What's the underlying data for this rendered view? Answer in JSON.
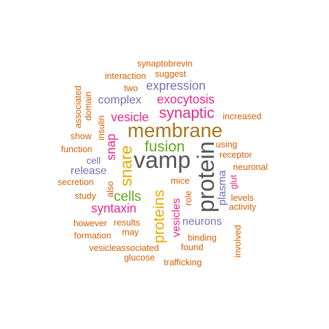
{
  "words": [
    {
      "text": "synaptobrevin",
      "color": "#d95f02"
    },
    {
      "text": "interaction",
      "color": "#d95f02"
    },
    {
      "text": "suggest",
      "color": "#d95f02"
    },
    {
      "text": "two",
      "color": "#d95f02"
    },
    {
      "text": "expression",
      "color": "#7570b3"
    },
    {
      "text": "associated",
      "color": "#d95f02"
    },
    {
      "text": "domain",
      "color": "#d95f02"
    },
    {
      "text": "complex",
      "color": "#7570b3"
    },
    {
      "text": "exocytosis",
      "color": "#e7298a"
    },
    {
      "text": "insulin",
      "color": "#d95f02"
    },
    {
      "text": "vesicle",
      "color": "#e7298a"
    },
    {
      "text": "synaptic",
      "color": "#e7298a"
    },
    {
      "text": "increased",
      "color": "#d95f02"
    },
    {
      "text": "membrane",
      "color": "#a6761d"
    },
    {
      "text": "show",
      "color": "#d95f02"
    },
    {
      "text": "snap",
      "color": "#e7298a"
    },
    {
      "text": "fusion",
      "color": "#66a61e"
    },
    {
      "text": "using",
      "color": "#d95f02"
    },
    {
      "text": "function",
      "color": "#d95f02"
    },
    {
      "text": "snare",
      "color": "#e6ab02"
    },
    {
      "text": "vamp",
      "color": "#555555"
    },
    {
      "text": "protein",
      "color": "#555555"
    },
    {
      "text": "receptor",
      "color": "#d95f02"
    },
    {
      "text": "cell",
      "color": "#7570b3"
    },
    {
      "text": "neuronal",
      "color": "#d95f02"
    },
    {
      "text": "release",
      "color": "#7570b3"
    },
    {
      "text": "plasma",
      "color": "#7570b3"
    },
    {
      "text": "glut",
      "color": "#e7298a"
    },
    {
      "text": "secretion",
      "color": "#d95f02"
    },
    {
      "text": "also",
      "color": "#d95f02"
    },
    {
      "text": "mice",
      "color": "#d95f02"
    },
    {
      "text": "role",
      "color": "#d95f02"
    },
    {
      "text": "cells",
      "color": "#66a61e"
    },
    {
      "text": "proteins",
      "color": "#e6ab02"
    },
    {
      "text": "levels",
      "color": "#d95f02"
    },
    {
      "text": "study",
      "color": "#d95f02"
    },
    {
      "text": "activity",
      "color": "#d95f02"
    },
    {
      "text": "syntaxin",
      "color": "#e7298a"
    },
    {
      "text": "vesicles",
      "color": "#e7298a"
    },
    {
      "text": "neurons",
      "color": "#7570b3"
    },
    {
      "text": "however",
      "color": "#d95f02"
    },
    {
      "text": "results",
      "color": "#d95f02"
    },
    {
      "text": "involved",
      "color": "#d95f02"
    },
    {
      "text": "may",
      "color": "#d95f02"
    },
    {
      "text": "formation",
      "color": "#d95f02"
    },
    {
      "text": "binding",
      "color": "#d95f02"
    },
    {
      "text": "vesicleassociated",
      "color": "#d95f02"
    },
    {
      "text": "found",
      "color": "#d95f02"
    },
    {
      "text": "glucose",
      "color": "#d95f02"
    },
    {
      "text": "trafficking",
      "color": "#d95f02"
    }
  ]
}
